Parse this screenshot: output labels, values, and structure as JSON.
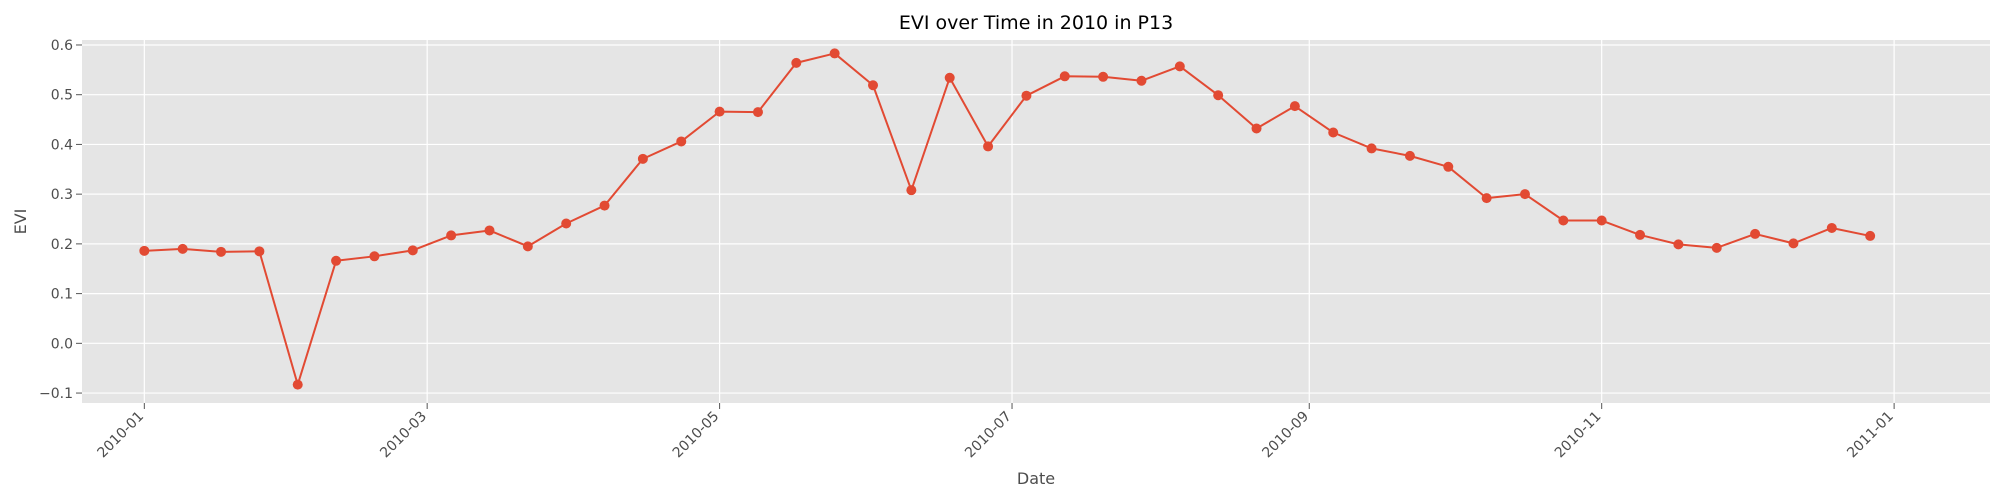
{
  "chart_data": {
    "type": "line",
    "title": "EVI over Time in 2010 in P13",
    "xlabel": "Date",
    "ylabel": "EVI",
    "grid": true,
    "style": "ggplot",
    "colors": {
      "plot_background": "#e5e5e5",
      "grid": "#ffffff",
      "series": "#e24a33",
      "tick_text": "#4d4d4d",
      "title_text": "#000000"
    },
    "xlim": [
      "2009-12-19",
      "2011-01-21"
    ],
    "ylim": [
      -0.12,
      0.61
    ],
    "x_ticks": [
      "2010-01-01",
      "2010-03-01",
      "2010-05-01",
      "2010-07-01",
      "2010-09-01",
      "2010-11-01",
      "2011-01-01"
    ],
    "x_tick_labels": [
      "2010-01",
      "2010-03",
      "2010-05",
      "2010-07",
      "2010-09",
      "2010-11",
      "2011-01"
    ],
    "y_ticks": [
      -0.1,
      0.0,
      0.1,
      0.2,
      0.3,
      0.4,
      0.5,
      0.6
    ],
    "y_tick_labels": [
      "−0.1",
      "0.0",
      "0.1",
      "0.2",
      "0.3",
      "0.4",
      "0.5",
      "0.6"
    ],
    "series": [
      {
        "x": [
          "2010-01-01",
          "2010-01-09",
          "2010-01-17",
          "2010-01-25",
          "2010-02-02",
          "2010-02-10",
          "2010-02-18",
          "2010-02-26",
          "2010-03-06",
          "2010-03-14",
          "2010-03-22",
          "2010-03-30",
          "2010-04-07",
          "2010-04-15",
          "2010-04-23",
          "2010-05-01",
          "2010-05-09",
          "2010-05-17",
          "2010-05-25",
          "2010-06-02",
          "2010-06-10",
          "2010-06-18",
          "2010-06-26",
          "2010-07-04",
          "2010-07-12",
          "2010-07-20",
          "2010-07-28",
          "2010-08-05",
          "2010-08-13",
          "2010-08-21",
          "2010-08-29",
          "2010-09-06",
          "2010-09-14",
          "2010-09-22",
          "2010-09-30",
          "2010-10-08",
          "2010-10-16",
          "2010-10-24",
          "2010-11-01",
          "2010-11-09",
          "2010-11-17",
          "2010-11-25",
          "2010-12-03",
          "2010-12-11",
          "2010-12-19",
          "2010-12-27"
        ],
        "y": [
          0.186,
          0.19,
          0.184,
          0.185,
          -0.083,
          0.166,
          0.175,
          0.187,
          0.217,
          0.227,
          0.195,
          0.241,
          0.277,
          0.371,
          0.406,
          0.466,
          0.465,
          0.564,
          0.583,
          0.519,
          0.308,
          0.534,
          0.396,
          0.498,
          0.537,
          0.536,
          0.528,
          0.557,
          0.499,
          0.432,
          0.477,
          0.424,
          0.392,
          0.377,
          0.355,
          0.292,
          0.3,
          0.247,
          0.247,
          0.218,
          0.199,
          0.192,
          0.22,
          0.201,
          0.232,
          0.216
        ]
      }
    ]
  }
}
